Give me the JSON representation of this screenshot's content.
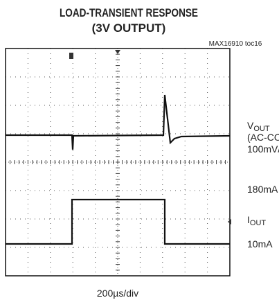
{
  "header": {
    "title": "LOAD-TRANSIENT RESPONSE",
    "subtitle": "(3V OUTPUT)",
    "code": "MAX16910 toc16"
  },
  "labels": {
    "vout": {
      "main": "V",
      "sub": "OUT"
    },
    "coupling": "(AC-CO",
    "vscale": "100mV/",
    "ihigh": "180mA",
    "iout": {
      "main": "I",
      "sub": "OUT"
    },
    "ilow": "10mA"
  },
  "footer": {
    "timebase": "200µs/div"
  }
}
